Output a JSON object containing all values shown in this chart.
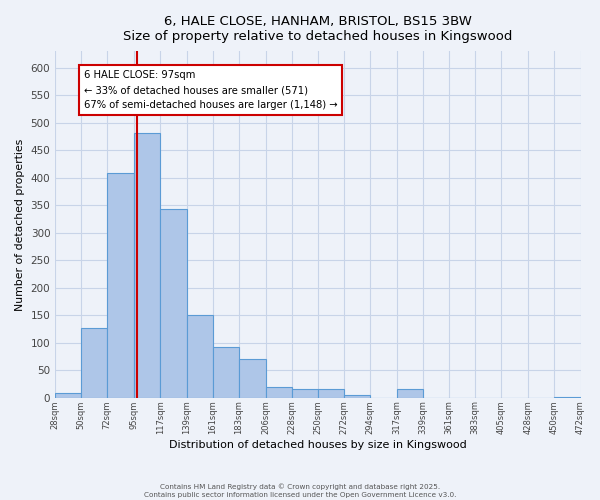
{
  "title": "6, HALE CLOSE, HANHAM, BRISTOL, BS15 3BW",
  "subtitle": "Size of property relative to detached houses in Kingswood",
  "xlabel": "Distribution of detached houses by size in Kingswood",
  "ylabel": "Number of detached properties",
  "bar_edges": [
    28,
    50,
    72,
    95,
    117,
    139,
    161,
    183,
    206,
    228,
    250,
    272,
    294,
    317,
    339,
    361,
    383,
    405,
    428,
    450,
    472
  ],
  "bar_heights": [
    8,
    127,
    408,
    482,
    343,
    150,
    92,
    70,
    20,
    15,
    15,
    5,
    0,
    15,
    0,
    0,
    0,
    0,
    0,
    2
  ],
  "bar_color": "#aec6e8",
  "bar_edge_color": "#5b9bd5",
  "property_size": 97,
  "vline_color": "#cc0000",
  "annotation_text": "6 HALE CLOSE: 97sqm\n← 33% of detached houses are smaller (571)\n67% of semi-detached houses are larger (1,148) →",
  "annotation_box_color": "#cc0000",
  "annotation_bg": "#ffffff",
  "ylim": [
    0,
    630
  ],
  "yticks": [
    0,
    50,
    100,
    150,
    200,
    250,
    300,
    350,
    400,
    450,
    500,
    550,
    600
  ],
  "tick_labels": [
    "28sqm",
    "50sqm",
    "72sqm",
    "95sqm",
    "117sqm",
    "139sqm",
    "161sqm",
    "183sqm",
    "206sqm",
    "228sqm",
    "250sqm",
    "272sqm",
    "294sqm",
    "317sqm",
    "339sqm",
    "361sqm",
    "383sqm",
    "405sqm",
    "428sqm",
    "450sqm",
    "472sqm"
  ],
  "footer_line1": "Contains HM Land Registry data © Crown copyright and database right 2025.",
  "footer_line2": "Contains public sector information licensed under the Open Government Licence v3.0.",
  "background_color": "#eef2f9",
  "grid_color": "#c8d4e8"
}
